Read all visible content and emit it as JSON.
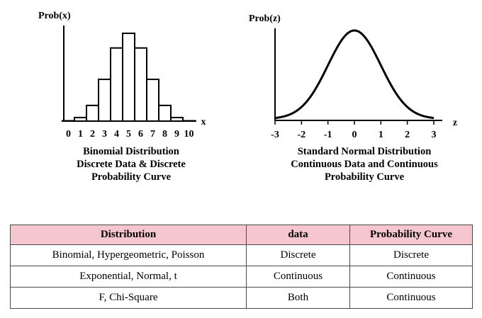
{
  "chart_data": [
    {
      "type": "bar",
      "ylabel": "Prob(x)",
      "xlabel": "x",
      "categories": [
        "0",
        "1",
        "2",
        "3",
        "4",
        "5",
        "6",
        "7",
        "8",
        "9",
        "10"
      ],
      "values": [
        0.001,
        0.01,
        0.044,
        0.117,
        0.205,
        0.246,
        0.205,
        0.117,
        0.044,
        0.01,
        0.001
      ],
      "ylim": [
        0,
        0.26
      ],
      "caption": [
        "Binomial Distribution",
        "Discrete Data & Discrete",
        "Probability Curve"
      ],
      "grid": false
    },
    {
      "type": "line",
      "ylabel": "Prob(z)",
      "xlabel": "z",
      "x_ticks": [
        "-3",
        "-2",
        "-1",
        "0",
        "1",
        "2",
        "3"
      ],
      "xlim": [
        -3,
        3
      ],
      "curve": "standard-normal-density",
      "ylim": [
        0,
        0.42
      ],
      "caption": [
        "Standard Normal Distribution",
        "Continuous Data and Continuous",
        "Probability Curve"
      ],
      "grid": false
    }
  ],
  "table": {
    "headers": [
      "Distribution",
      "data",
      "Probability Curve"
    ],
    "rows": [
      [
        "Binomial, Hypergeometric, Poisson",
        "Discrete",
        "Discrete"
      ],
      [
        "Exponential, Normal, t",
        "Continuous",
        "Continuous"
      ],
      [
        "F, Chi-Square",
        "Both",
        "Continuous"
      ]
    ],
    "header_color": "#f6c6cf"
  }
}
